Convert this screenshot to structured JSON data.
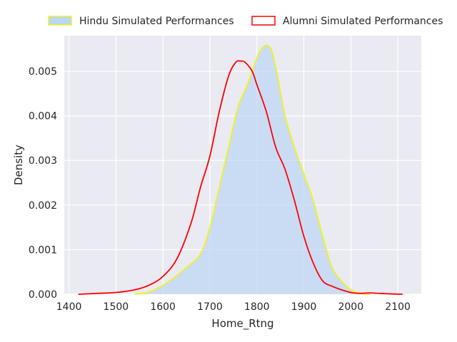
{
  "chart_data": {
    "type": "area",
    "title": "",
    "xlabel": "Home_Rtng",
    "ylabel": "Density",
    "xlim": [
      1390,
      2150
    ],
    "ylim": [
      0,
      0.0058
    ],
    "xticks": [
      1400,
      1500,
      1600,
      1700,
      1800,
      1900,
      2000,
      2100
    ],
    "xtick_labels": [
      "1400",
      "1500",
      "1600",
      "1700",
      "1800",
      "1900",
      "2000",
      "2100"
    ],
    "yticks": [
      0,
      0.001,
      0.002,
      0.003,
      0.004,
      0.005
    ],
    "ytick_labels": [
      "0.000",
      "0.001",
      "0.002",
      "0.003",
      "0.004",
      "0.005"
    ],
    "grid": true,
    "legend_position": "top",
    "series": [
      {
        "name": "Hindu Simulated Performances",
        "kind": "filled-density",
        "fill_color": "#bcd6f5",
        "line_color": "#f2f21a",
        "x": [
          1540,
          1570,
          1600,
          1630,
          1650,
          1680,
          1700,
          1720,
          1740,
          1760,
          1780,
          1800,
          1810,
          1820,
          1830,
          1840,
          1860,
          1880,
          1900,
          1920,
          1940,
          1960,
          1980,
          2000,
          2020,
          2040
        ],
        "y": [
          0.0,
          5e-05,
          0.0002,
          0.00042,
          0.0006,
          0.0009,
          0.0015,
          0.0024,
          0.0033,
          0.0042,
          0.0047,
          0.0053,
          0.0055,
          0.00558,
          0.0055,
          0.0051,
          0.004,
          0.0033,
          0.0027,
          0.0021,
          0.0013,
          0.0006,
          0.0003,
          0.0001,
          2e-05,
          0.0
        ]
      },
      {
        "name": "Alumni Simulated Performances",
        "kind": "density-line",
        "line_color": "#ff0000",
        "x": [
          1420,
          1460,
          1500,
          1540,
          1570,
          1600,
          1630,
          1660,
          1680,
          1700,
          1720,
          1740,
          1755,
          1765,
          1775,
          1790,
          1800,
          1820,
          1840,
          1860,
          1880,
          1900,
          1920,
          1940,
          1960,
          1980,
          2000,
          2020,
          2040,
          2060,
          2080,
          2110
        ],
        "y": [
          0.0,
          2e-05,
          4e-05,
          0.0001,
          0.0002,
          0.0004,
          0.0008,
          0.0016,
          0.0024,
          0.0031,
          0.0041,
          0.0049,
          0.0052,
          0.00523,
          0.0052,
          0.005,
          0.0047,
          0.0041,
          0.0033,
          0.0028,
          0.0021,
          0.0013,
          0.0007,
          0.0003,
          0.00018,
          0.0001,
          4e-05,
          2e-05,
          3e-05,
          2e-05,
          1e-05,
          0.0
        ]
      }
    ]
  }
}
